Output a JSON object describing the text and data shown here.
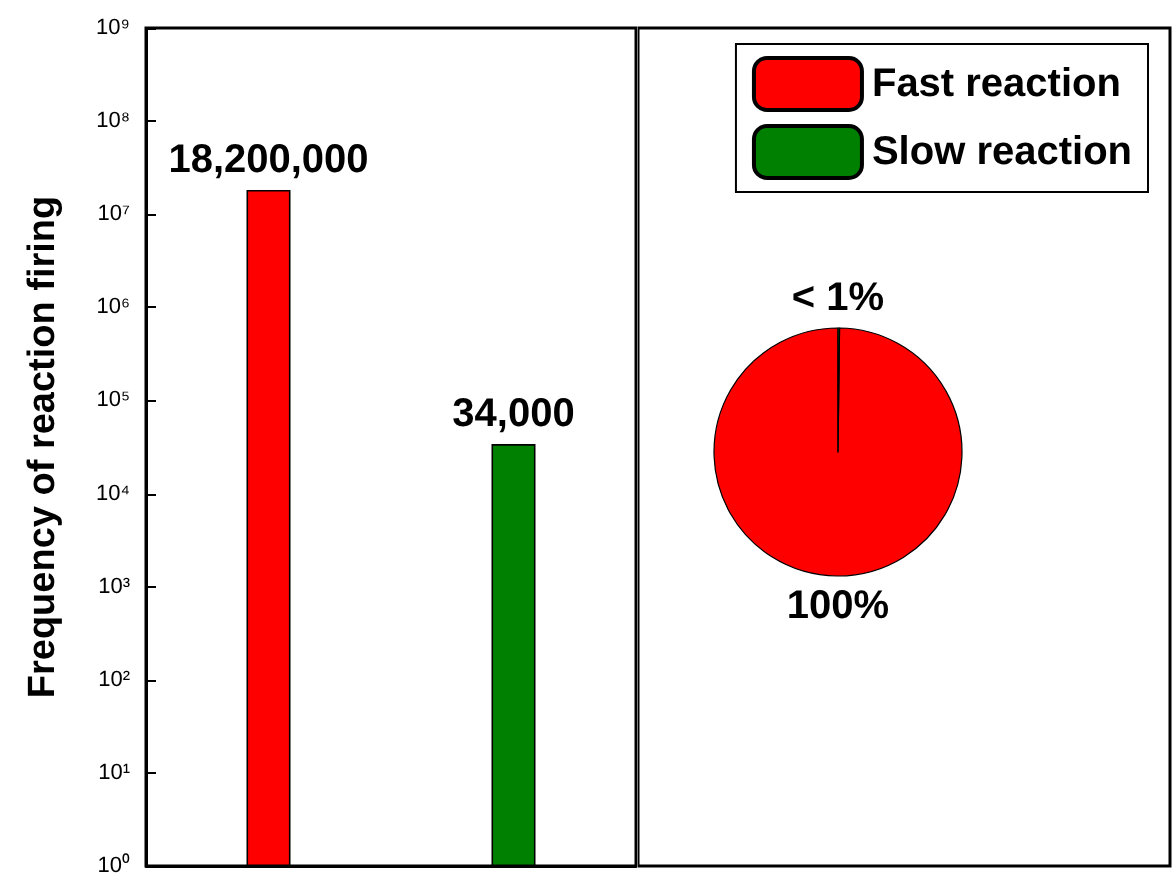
{
  "chart_data": [
    {
      "type": "bar",
      "ylabel": "Frequency of reaction firing",
      "categories": [
        null,
        null
      ],
      "values": [
        18200000,
        34000
      ],
      "colors": [
        "#ff0000",
        "#008000"
      ],
      "value_labels": [
        "18,200,000",
        "34,000"
      ],
      "log": "y",
      "ylim": [
        1,
        1000000000
      ],
      "yticks": [
        {
          "value": 1,
          "label": "10⁰"
        },
        {
          "value": 10,
          "label": "10¹"
        },
        {
          "value": 100,
          "label": "10²"
        },
        {
          "value": 1000,
          "label": "10³"
        },
        {
          "value": 10000,
          "label": "10⁴"
        },
        {
          "value": 100000,
          "label": "10⁵"
        },
        {
          "value": 1000000,
          "label": "10⁶"
        },
        {
          "value": 10000000,
          "label": "10⁷"
        },
        {
          "value": 100000000,
          "label": "10⁸"
        },
        {
          "value": 1000000000,
          "label": "10⁹"
        }
      ],
      "tick_labels": "y",
      "grid": false,
      "legend": false
    },
    {
      "type": "pie",
      "categories": [
        "Fast reaction",
        "Slow reaction"
      ],
      "values": [
        99.8,
        0.2
      ],
      "colors": [
        "#ff0000",
        "#008000"
      ],
      "value_labels": [
        "100%",
        "< 1%"
      ],
      "legend": "top right"
    }
  ]
}
